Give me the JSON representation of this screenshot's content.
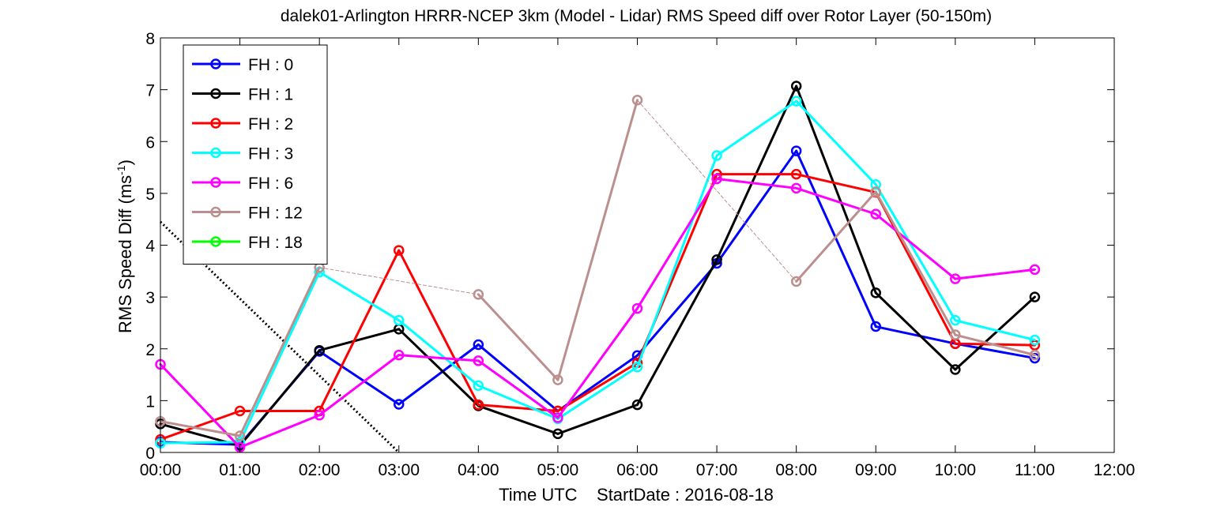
{
  "chart_data": {
    "type": "line",
    "title": "dalek01-Arlington HRRR-NCEP 3km (Model - Lidar) RMS Speed diff over Rotor Layer (50-150m)",
    "xlabel": "Time UTC    StartDate : 2016-08-18",
    "ylabel": "RMS Speed Diff (ms",
    "ylabel_sup": "-1",
    "ylabel_end": ")",
    "xlim": [
      0,
      12
    ],
    "ylim": [
      0,
      8
    ],
    "x_ticks": [
      {
        "value": 0,
        "label": "00:00"
      },
      {
        "value": 1,
        "label": "01:00"
      },
      {
        "value": 2,
        "label": "02:00"
      },
      {
        "value": 3,
        "label": "03:00"
      },
      {
        "value": 4,
        "label": "04:00"
      },
      {
        "value": 5,
        "label": "05:00"
      },
      {
        "value": 6,
        "label": "06:00"
      },
      {
        "value": 7,
        "label": "07:00"
      },
      {
        "value": 8,
        "label": "08:00"
      },
      {
        "value": 9,
        "label": "09:00"
      },
      {
        "value": 10,
        "label": "10:00"
      },
      {
        "value": 11,
        "label": "11:00"
      },
      {
        "value": 12,
        "label": "12:00"
      }
    ],
    "y_ticks": [
      {
        "value": 0,
        "label": "0"
      },
      {
        "value": 1,
        "label": "1"
      },
      {
        "value": 2,
        "label": "2"
      },
      {
        "value": 3,
        "label": "3"
      },
      {
        "value": 4,
        "label": "4"
      },
      {
        "value": 5,
        "label": "5"
      },
      {
        "value": 6,
        "label": "6"
      },
      {
        "value": 7,
        "label": "7"
      },
      {
        "value": 8,
        "label": "8"
      }
    ],
    "grid": false,
    "legend_position": "top-left",
    "reference_line": {
      "style": "dotted",
      "color": "#000000",
      "x": [
        0,
        3
      ],
      "y": [
        4.45,
        0
      ]
    },
    "series": [
      {
        "name": "FH : 0",
        "color": "#0000ff",
        "x": [
          0,
          1,
          2,
          3,
          4,
          5,
          6,
          7,
          8,
          9,
          10,
          11
        ],
        "y": [
          0.2,
          0.15,
          1.95,
          0.93,
          2.08,
          0.8,
          1.87,
          3.65,
          5.82,
          2.43,
          2.1,
          1.82
        ]
      },
      {
        "name": "FH : 1",
        "color": "#000000",
        "x": [
          0,
          1,
          2,
          3,
          4,
          5,
          6,
          7,
          8,
          9,
          10,
          11
        ],
        "y": [
          0.55,
          0.13,
          1.97,
          2.38,
          0.9,
          0.36,
          0.92,
          3.72,
          7.07,
          3.08,
          1.6,
          3.0
        ]
      },
      {
        "name": "FH : 2",
        "color": "#ff0000",
        "x": [
          0,
          1,
          2,
          3,
          4,
          5,
          6,
          7,
          8,
          9,
          10,
          11
        ],
        "y": [
          0.25,
          0.8,
          0.8,
          3.9,
          0.92,
          0.8,
          1.73,
          5.37,
          5.37,
          5.02,
          2.1,
          2.07
        ]
      },
      {
        "name": "FH : 3",
        "color": "#00ffff",
        "x": [
          0,
          1,
          2,
          3,
          4,
          5,
          6,
          7,
          8,
          9,
          10,
          11
        ],
        "y": [
          0.18,
          0.2,
          3.48,
          2.55,
          1.29,
          0.65,
          1.65,
          5.73,
          6.78,
          5.17,
          2.55,
          2.17
        ]
      },
      {
        "name": "FH : 6",
        "color": "#ff00ff",
        "x": [
          0,
          1,
          2,
          3,
          4,
          5,
          6,
          7,
          8,
          9,
          10,
          11
        ],
        "y": [
          1.7,
          0.1,
          0.72,
          1.88,
          1.77,
          0.67,
          2.78,
          5.28,
          5.1,
          4.6,
          3.35,
          3.53
        ]
      },
      {
        "name": "FH : 12",
        "color": "#bc8f8f",
        "x": [
          0,
          1,
          2,
          3,
          4,
          5,
          6,
          7,
          8,
          9,
          10,
          11
        ],
        "y": [
          0.6,
          0.32,
          3.57,
          null,
          3.05,
          1.4,
          6.8,
          null,
          3.3,
          5.03,
          2.27,
          1.88
        ]
      },
      {
        "name": "FH : 18",
        "color": "#00ff00",
        "x": [],
        "y": []
      }
    ]
  }
}
